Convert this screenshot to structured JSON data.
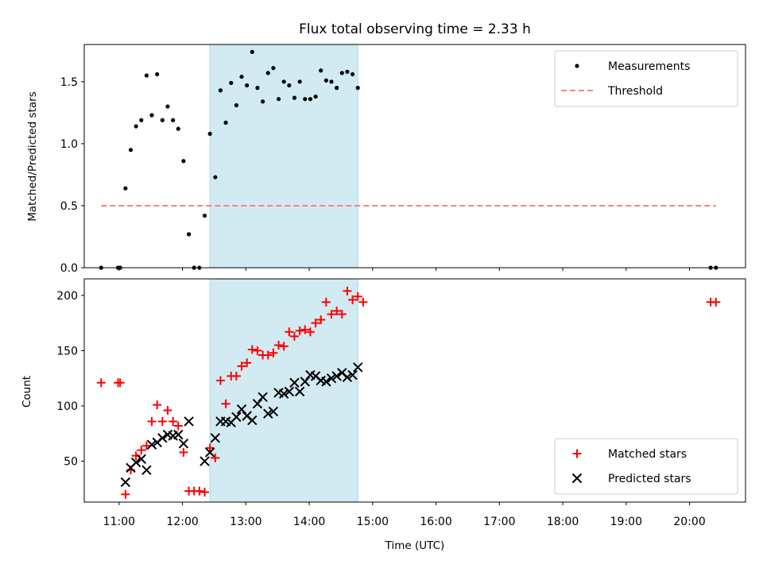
{
  "chart_data": [
    {
      "type": "scatter",
      "title": "Flux total observing time = 2.33 h",
      "ylabel": "Matched/Predicted stars",
      "xlabel": "",
      "xlim": [
        "10:27",
        "20:53"
      ],
      "ylim": [
        0,
        1.8
      ],
      "yticks": [
        "0.0",
        "0.5",
        "1.0",
        "1.5"
      ],
      "highlight_span": {
        "start": "12:26",
        "end": "14:46",
        "color": "#add8e6"
      },
      "legend": {
        "position": "top-right",
        "entries": [
          "Measurements",
          "Threshold"
        ]
      },
      "threshold": {
        "name": "Threshold",
        "y": 0.5,
        "x_start": "10:43",
        "x_end": "20:25",
        "color": "#ff8080",
        "style": "dashed"
      },
      "series": [
        {
          "name": "Measurements",
          "marker": "dot",
          "color": "#000000",
          "points": [
            [
              "10:43",
              0.0
            ],
            [
              "10:59",
              0.0
            ],
            [
              "11:01",
              0.0
            ],
            [
              "11:06",
              0.64
            ],
            [
              "11:11",
              0.95
            ],
            [
              "11:16",
              1.14
            ],
            [
              "11:21",
              1.19
            ],
            [
              "11:26",
              1.55
            ],
            [
              "11:31",
              1.23
            ],
            [
              "11:36",
              1.56
            ],
            [
              "11:41",
              1.19
            ],
            [
              "11:46",
              1.3
            ],
            [
              "11:51",
              1.19
            ],
            [
              "11:56",
              1.12
            ],
            [
              "12:01",
              0.86
            ],
            [
              "12:06",
              0.27
            ],
            [
              "12:11",
              0.0
            ],
            [
              "12:16",
              0.0
            ],
            [
              "12:21",
              0.42
            ],
            [
              "12:26",
              1.08
            ],
            [
              "12:31",
              0.73
            ],
            [
              "12:36",
              1.43
            ],
            [
              "12:41",
              1.17
            ],
            [
              "12:46",
              1.49
            ],
            [
              "12:51",
              1.31
            ],
            [
              "12:56",
              1.54
            ],
            [
              "13:01",
              1.47
            ],
            [
              "13:06",
              1.74
            ],
            [
              "13:11",
              1.45
            ],
            [
              "13:16",
              1.34
            ],
            [
              "13:21",
              1.57
            ],
            [
              "13:26",
              1.61
            ],
            [
              "13:31",
              1.36
            ],
            [
              "13:36",
              1.5
            ],
            [
              "13:41",
              1.47
            ],
            [
              "13:46",
              1.37
            ],
            [
              "13:51",
              1.5
            ],
            [
              "13:56",
              1.36
            ],
            [
              "14:01",
              1.36
            ],
            [
              "14:06",
              1.38
            ],
            [
              "14:11",
              1.59
            ],
            [
              "14:16",
              1.51
            ],
            [
              "14:21",
              1.5
            ],
            [
              "14:26",
              1.45
            ],
            [
              "14:31",
              1.57
            ],
            [
              "14:36",
              1.58
            ],
            [
              "14:41",
              1.56
            ],
            [
              "14:46",
              1.45
            ],
            [
              "20:20",
              0.0
            ],
            [
              "20:25",
              0.0
            ]
          ]
        }
      ]
    },
    {
      "type": "scatter",
      "title": "",
      "xlabel": "Time (UTC)",
      "ylabel": "Count",
      "xlim": [
        "10:27",
        "20:53"
      ],
      "ylim": [
        13,
        215
      ],
      "yticks": [
        "50",
        "100",
        "150",
        "200"
      ],
      "xticks": [
        "11:00",
        "12:00",
        "13:00",
        "14:00",
        "15:00",
        "16:00",
        "17:00",
        "18:00",
        "19:00",
        "20:00"
      ],
      "highlight_span": {
        "start": "12:26",
        "end": "14:46",
        "color": "#add8e6"
      },
      "legend": {
        "position": "bottom-right",
        "entries": [
          "Matched stars",
          "Predicted stars"
        ]
      },
      "series": [
        {
          "name": "Matched stars",
          "marker": "plus",
          "color": "#ff0000",
          "points": [
            [
              "10:43",
              121
            ],
            [
              "10:59",
              121
            ],
            [
              "11:01",
              121
            ],
            [
              "11:06",
              20
            ],
            [
              "11:11",
              42
            ],
            [
              "11:16",
              55
            ],
            [
              "11:21",
              60
            ],
            [
              "11:26",
              64
            ],
            [
              "11:31",
              86
            ],
            [
              "11:36",
              101
            ],
            [
              "11:41",
              86
            ],
            [
              "11:46",
              96
            ],
            [
              "11:51",
              86
            ],
            [
              "11:56",
              82
            ],
            [
              "12:01",
              58
            ],
            [
              "12:06",
              23
            ],
            [
              "12:11",
              23
            ],
            [
              "12:16",
              23
            ],
            [
              "12:21",
              22
            ],
            [
              "12:26",
              62
            ],
            [
              "12:31",
              53
            ],
            [
              "12:36",
              123
            ],
            [
              "12:41",
              102
            ],
            [
              "12:46",
              127
            ],
            [
              "12:51",
              127
            ],
            [
              "12:56",
              136
            ],
            [
              "13:01",
              139
            ],
            [
              "13:06",
              151
            ],
            [
              "13:11",
              150
            ],
            [
              "13:16",
              146
            ],
            [
              "13:21",
              146
            ],
            [
              "13:26",
              148
            ],
            [
              "13:31",
              155
            ],
            [
              "13:36",
              154
            ],
            [
              "13:41",
              167
            ],
            [
              "13:46",
              163
            ],
            [
              "13:51",
              168
            ],
            [
              "13:56",
              169
            ],
            [
              "14:01",
              167
            ],
            [
              "14:06",
              175
            ],
            [
              "14:11",
              178
            ],
            [
              "14:16",
              194
            ],
            [
              "14:21",
              183
            ],
            [
              "14:26",
              186
            ],
            [
              "14:31",
              183
            ],
            [
              "14:36",
              204
            ],
            [
              "14:41",
              196
            ],
            [
              "14:46",
              199
            ],
            [
              "14:51",
              194
            ],
            [
              "20:20",
              194
            ],
            [
              "20:25",
              194
            ]
          ]
        },
        {
          "name": "Predicted stars",
          "marker": "x",
          "color": "#000000",
          "points": [
            [
              "11:06",
              31
            ],
            [
              "11:11",
              44
            ],
            [
              "11:16",
              49
            ],
            [
              "11:21",
              52
            ],
            [
              "11:26",
              42
            ],
            [
              "11:31",
              65
            ],
            [
              "11:36",
              67
            ],
            [
              "11:41",
              71
            ],
            [
              "11:46",
              74
            ],
            [
              "11:51",
              73
            ],
            [
              "11:56",
              74
            ],
            [
              "12:01",
              66
            ],
            [
              "12:06",
              86
            ],
            [
              "12:21",
              50
            ],
            [
              "12:26",
              58
            ],
            [
              "12:31",
              71
            ],
            [
              "12:36",
              86
            ],
            [
              "12:41",
              86
            ],
            [
              "12:46",
              85
            ],
            [
              "12:51",
              90
            ],
            [
              "12:56",
              97
            ],
            [
              "13:01",
              91
            ],
            [
              "13:06",
              87
            ],
            [
              "13:11",
              102
            ],
            [
              "13:16",
              108
            ],
            [
              "13:21",
              93
            ],
            [
              "13:26",
              95
            ],
            [
              "13:31",
              112
            ],
            [
              "13:36",
              111
            ],
            [
              "13:41",
              113
            ],
            [
              "13:46",
              121
            ],
            [
              "13:51",
              113
            ],
            [
              "13:56",
              122
            ],
            [
              "14:01",
              128
            ],
            [
              "14:06",
              127
            ],
            [
              "14:11",
              123
            ],
            [
              "14:16",
              122
            ],
            [
              "14:21",
              125
            ],
            [
              "14:26",
              127
            ],
            [
              "14:31",
              130
            ],
            [
              "14:36",
              126
            ],
            [
              "14:41",
              128
            ],
            [
              "14:46",
              135
            ]
          ]
        }
      ]
    }
  ]
}
